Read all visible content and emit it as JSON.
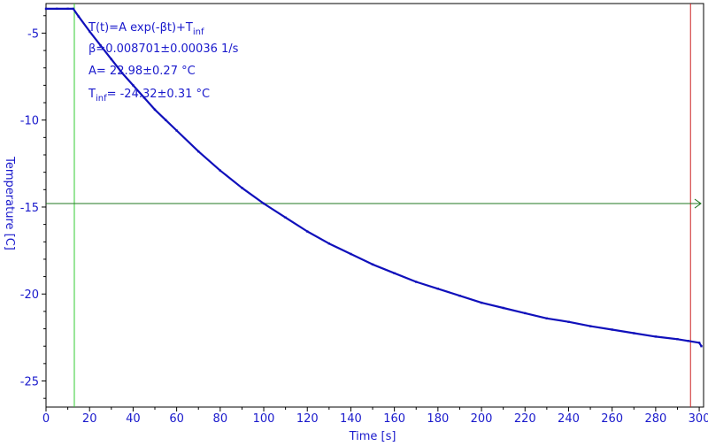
{
  "chart_data": {
    "type": "line",
    "title": "",
    "xlabel": "Time [s]",
    "ylabel": "Temperature [C]",
    "xlim": [
      0,
      302
    ],
    "ylim": [
      -26.5,
      -3.3
    ],
    "xticks": [
      0,
      20,
      40,
      60,
      80,
      100,
      120,
      140,
      160,
      180,
      200,
      220,
      240,
      260,
      280,
      300
    ],
    "yticks": [
      -5,
      -10,
      -15,
      -20,
      -25
    ],
    "grid": false,
    "series": [
      {
        "x": [
          0,
          5,
          10,
          12.5,
          15,
          20,
          25,
          30,
          35,
          40,
          45,
          50,
          55,
          60,
          70,
          80,
          90,
          100,
          110,
          120,
          130,
          140,
          150,
          160,
          170,
          180,
          190,
          200,
          210,
          220,
          230,
          240,
          250,
          260,
          270,
          280,
          290,
          295,
          300,
          301
        ],
        "y": [
          -3.6,
          -3.6,
          -3.6,
          -3.6,
          -4.05,
          -4.9,
          -5.7,
          -6.5,
          -7.3,
          -8.0,
          -8.7,
          -9.4,
          -10.0,
          -10.6,
          -11.8,
          -12.9,
          -13.9,
          -14.8,
          -15.6,
          -16.4,
          -17.1,
          -17.7,
          -18.3,
          -18.8,
          -19.3,
          -19.7,
          -20.1,
          -20.5,
          -20.8,
          -21.1,
          -21.4,
          -21.6,
          -21.85,
          -22.05,
          -22.25,
          -22.45,
          -22.6,
          -22.7,
          -22.8,
          -23.0
        ]
      }
    ],
    "markers": {
      "start_x": 13,
      "end_x": 296,
      "level_y": -14.8
    },
    "fit": {
      "line1": "T(t)=A exp(-βt)+T",
      "line1_sub": "inf",
      "line2": "β=0.008701±0.00036 1/s",
      "line3": "A= 22.98±0.27 °C",
      "line4_pre": "T",
      "line4_sub": "inf",
      "line4_post": "= -24.32±0.31 °C"
    },
    "colors": {
      "data": "#1010bb",
      "start_marker": "#33cc33",
      "end_marker": "#cc2222",
      "level_marker": "#227722",
      "axis": "#000000",
      "text": "#1a1acc"
    }
  }
}
